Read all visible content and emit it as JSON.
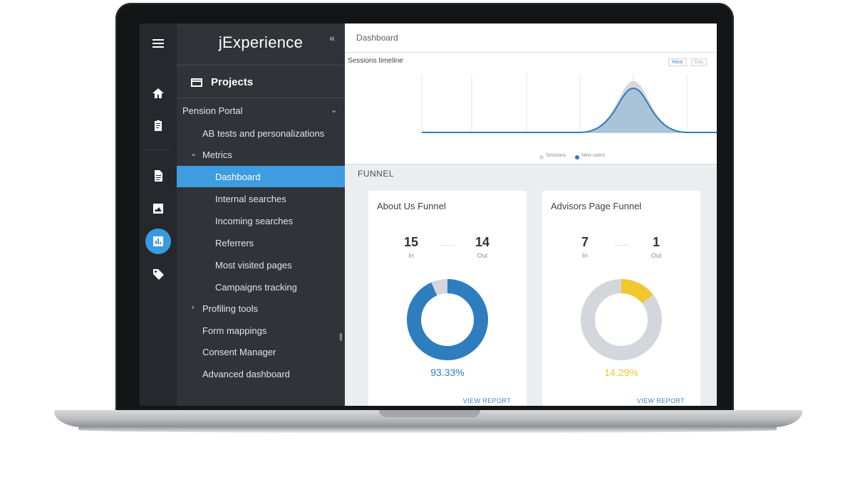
{
  "app": {
    "brand": "jExperience"
  },
  "sidebar": {
    "section_title": "Projects",
    "project": "Pension Portal",
    "items": [
      {
        "label": "AB tests and personalizations"
      },
      {
        "label": "Metrics"
      },
      {
        "label": "Dashboard"
      },
      {
        "label": "Internal searches"
      },
      {
        "label": "Incoming searches"
      },
      {
        "label": "Referrers"
      },
      {
        "label": "Most visited pages"
      },
      {
        "label": "Campaigns tracking"
      },
      {
        "label": "Profiling tools"
      },
      {
        "label": "Form mappings"
      },
      {
        "label": "Consent Manager"
      },
      {
        "label": "Advanced dashboard"
      }
    ],
    "active_item": "Dashboard"
  },
  "rail": {
    "icons": [
      "menu-icon",
      "home-icon",
      "clipboard-icon",
      "document-icon",
      "image-icon",
      "chart-icon",
      "tag-icon"
    ],
    "active": "chart-icon"
  },
  "main": {
    "title": "Dashboard",
    "timeline": {
      "title": "Sessions timeline",
      "buttons": [
        "Hour",
        "Day"
      ],
      "legend": [
        "Sessions",
        "New users"
      ]
    },
    "funnel_label": "FUNNEL",
    "cards": [
      {
        "title": "About Us Funnel",
        "in_value": "15",
        "in_label": "In",
        "out_value": "14",
        "out_label": "Out",
        "percent": "93.33%",
        "fraction": 0.9333,
        "accent": "#2e7dbf",
        "rest": "#d3d6da",
        "link": "VIEW REPORT"
      },
      {
        "title": "Advisors Page Funnel",
        "in_value": "7",
        "in_label": "In",
        "out_value": "1",
        "out_label": "Out",
        "percent": "14.29%",
        "fraction": 0.1429,
        "accent": "#f3c72c",
        "rest": "#d3d6da",
        "link": "VIEW REPORT"
      }
    ]
  },
  "colors": {
    "accent": "#3d9de0",
    "rail": "#25282c",
    "panel": "#303438",
    "line": "#2e7dbf",
    "area": "#a9c4d9"
  }
}
